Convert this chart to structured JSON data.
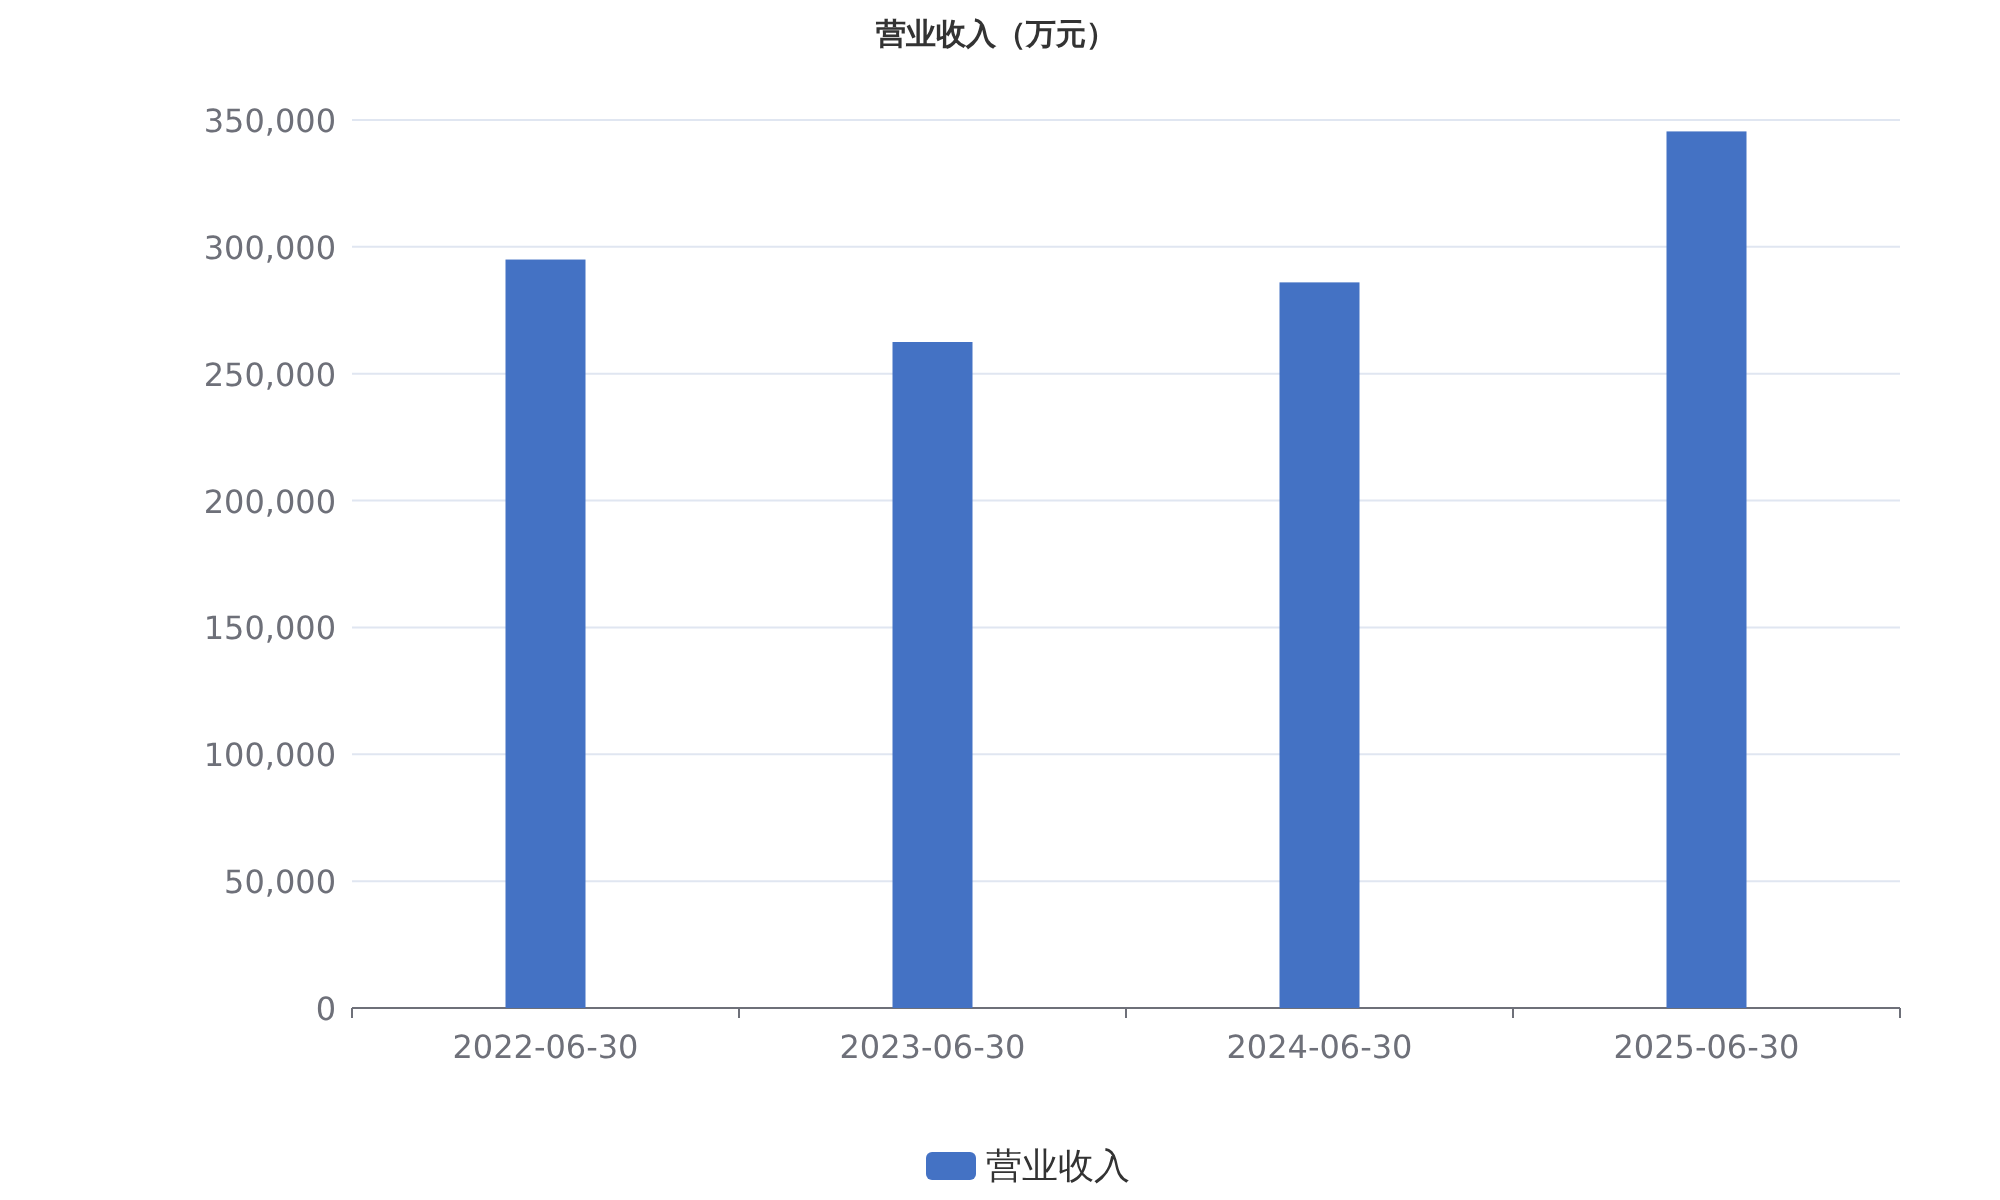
{
  "chart_data": {
    "type": "bar",
    "title": "营业收入（万元）",
    "categories": [
      "2022-06-30",
      "2023-06-30",
      "2024-06-30",
      "2025-06-30"
    ],
    "series": [
      {
        "name": "营业收入",
        "color": "#4472c4",
        "values": [
          295000,
          262500,
          286000,
          345500
        ]
      }
    ],
    "ylim": [
      0,
      350000
    ],
    "yticks": [
      {
        "value": 0,
        "label": "0"
      },
      {
        "value": 50000,
        "label": "50,000"
      },
      {
        "value": 100000,
        "label": "100,000"
      },
      {
        "value": 150000,
        "label": "150,000"
      },
      {
        "value": 200000,
        "label": "200,000"
      },
      {
        "value": 250000,
        "label": "250,000"
      },
      {
        "value": 300000,
        "label": "300,000"
      },
      {
        "value": 350000,
        "label": "350,000"
      }
    ],
    "grid": "y",
    "legend": "bottom"
  }
}
